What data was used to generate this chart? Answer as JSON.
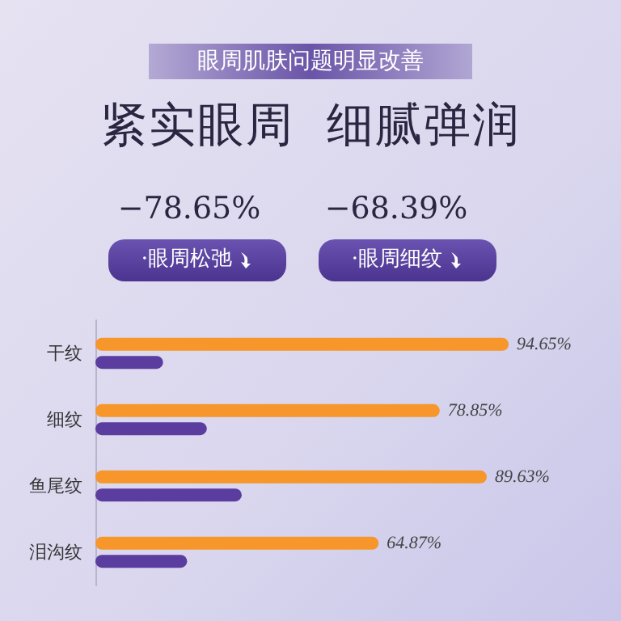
{
  "chart_data": {
    "type": "bar",
    "orientation": "horizontal",
    "subtitle": "眼周肌肤问题明显改善",
    "title": "紧实眼周  细腻弹润",
    "annotations": [
      "−78.65%",
      "·眼周松弛",
      "−68.39%",
      "·眼周细纹"
    ],
    "categories": [
      "干纹",
      "细纹",
      "鱼尾纹",
      "泪沟纹"
    ],
    "series": [
      {
        "color": "#f7962a",
        "values": [
          94.65,
          78.85,
          89.63,
          64.87
        ],
        "value_labels": [
          "94.65%",
          "78.85%",
          "89.63%",
          "64.87%"
        ]
      },
      {
        "color": "#5a3d9e",
        "values": [
          15.5,
          25.5,
          33.5,
          21
        ]
      }
    ],
    "tick_labels": "y"
  }
}
